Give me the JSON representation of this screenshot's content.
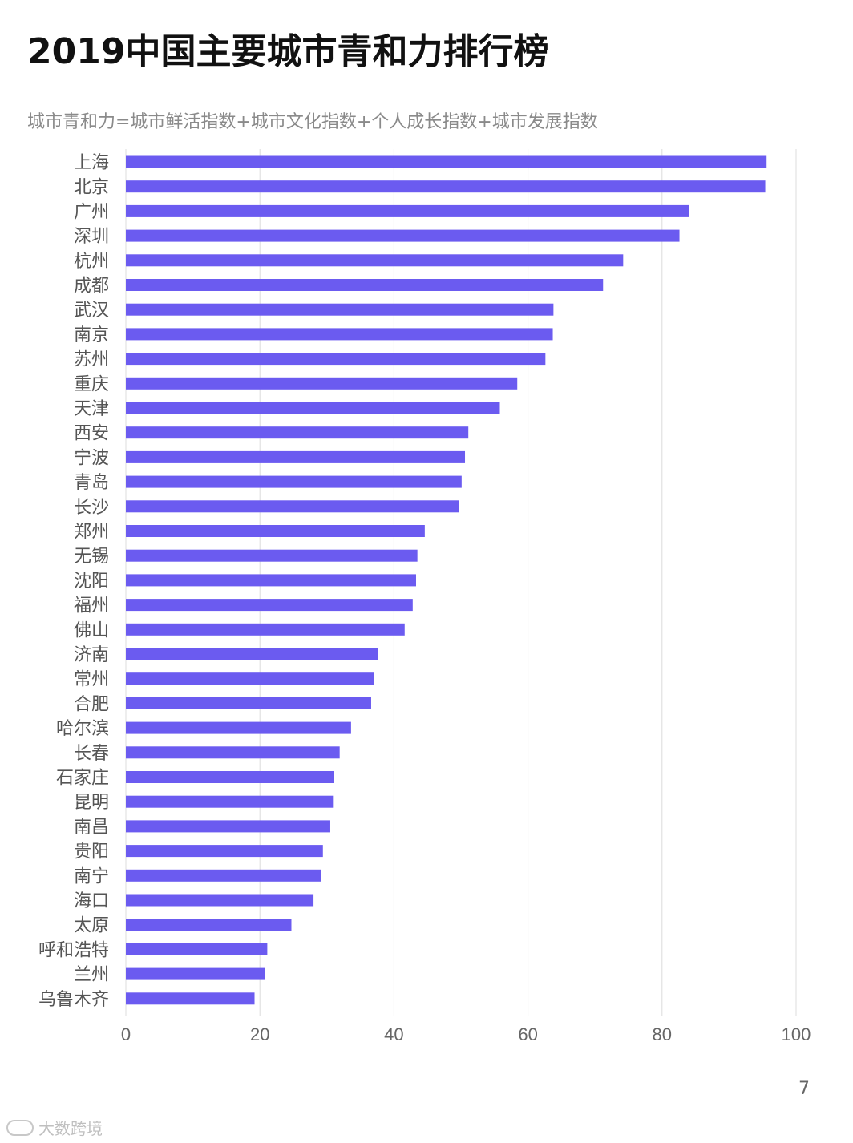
{
  "header": {
    "title": "2019中国主要城市青和力排行榜",
    "subtitle": "城市青和力=城市鲜活指数+城市文化指数+个人成长指数+城市发展指数"
  },
  "footer": {
    "page_number": "7",
    "watermark": "大数跨境"
  },
  "colors": {
    "bar": "#6b5bf0",
    "grid": "#dcdcdc",
    "label": "#555555"
  },
  "chart_data": {
    "type": "bar",
    "orientation": "horizontal",
    "categories": [
      "上海",
      "北京",
      "广州",
      "深圳",
      "杭州",
      "成都",
      "武汉",
      "南京",
      "苏州",
      "重庆",
      "天津",
      "西安",
      "宁波",
      "青岛",
      "长沙",
      "郑州",
      "无锡",
      "沈阳",
      "福州",
      "佛山",
      "济南",
      "常州",
      "合肥",
      "哈尔滨",
      "长春",
      "石家庄",
      "昆明",
      "南昌",
      "贵阳",
      "南宁",
      "海口",
      "太原",
      "呼和浩特",
      "兰州",
      "乌鲁木齐"
    ],
    "values": [
      95.6,
      95.4,
      84.0,
      82.6,
      74.2,
      71.2,
      63.8,
      63.7,
      62.6,
      58.4,
      55.8,
      51.1,
      50.6,
      50.1,
      49.7,
      44.6,
      43.5,
      43.3,
      42.8,
      41.6,
      37.6,
      37.0,
      36.6,
      33.6,
      31.9,
      31.0,
      30.9,
      30.5,
      29.4,
      29.1,
      28.0,
      24.7,
      21.1,
      20.8,
      19.2
    ],
    "xlim": [
      0,
      100
    ],
    "xticks": [
      0,
      20,
      40,
      60,
      80,
      100
    ],
    "grid": true,
    "legend": "none"
  }
}
